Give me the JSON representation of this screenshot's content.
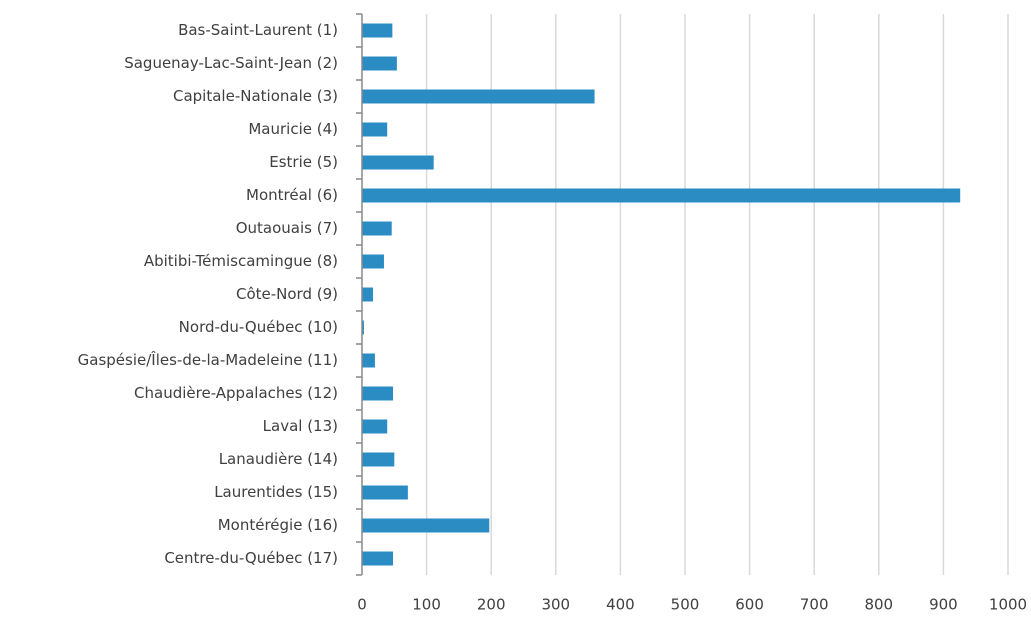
{
  "chart_data": {
    "type": "bar",
    "orientation": "horizontal",
    "categories": [
      "Bas-Saint-Laurent (1)",
      "Saguenay-Lac-Saint-Jean (2)",
      "Capitale-Nationale (3)",
      "Mauricie (4)",
      "Estrie (5)",
      "Montréal (6)",
      "Outaouais (7)",
      "Abitibi-Témiscamingue (8)",
      "Côte-Nord (9)",
      "Nord-du-Québec (10)",
      "Gaspésie/Îles-de-la-Madeleine (11)",
      "Chaudière-Appalaches (12)",
      "Laval (13)",
      "Lanaudière (14)",
      "Laurentides (15)",
      "Montérégie (16)",
      "Centre-du-Québec (17)"
    ],
    "values": [
      47,
      54,
      360,
      39,
      111,
      926,
      46,
      34,
      17,
      3,
      20,
      48,
      39,
      50,
      71,
      197,
      48
    ],
    "color": "#2b8cc4",
    "xlim": [
      0,
      1000
    ],
    "xticks": [
      0,
      100,
      200,
      300,
      400,
      500,
      600,
      700,
      800,
      900,
      1000
    ],
    "grid": true
  }
}
